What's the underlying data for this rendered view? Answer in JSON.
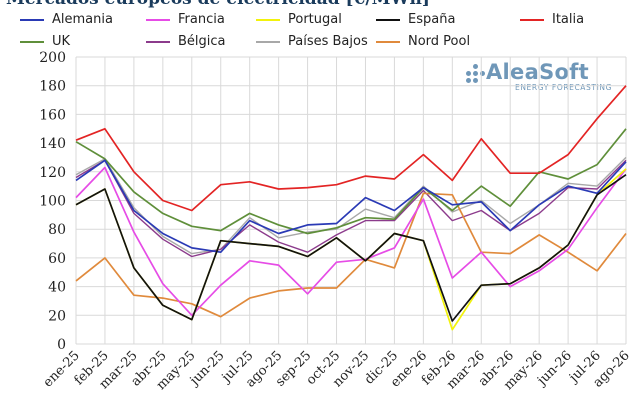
{
  "title": "Mercados europeos de electricidad [€/MWh]",
  "logo": {
    "name": "AleaSoft",
    "subtitle": "ENERGY FORECASTING"
  },
  "colors": {
    "Alemania": "#2a3ab5",
    "Francia": "#e64ce6",
    "Portugal": "#f2f20c",
    "España": "#111111",
    "Italia": "#e32424",
    "UK": "#5f8f3a",
    "Bélgica": "#8c3b8c",
    "Países Bajos": "#a8a8a8",
    "Nord Pool": "#e08a3c",
    "grid": "#d9d9d9",
    "axis_text": "#222222"
  },
  "chart_data": {
    "type": "line",
    "ylim": [
      0,
      200
    ],
    "yticks": [
      0,
      20,
      40,
      60,
      80,
      100,
      120,
      140,
      160,
      180,
      200
    ],
    "grid": true,
    "legend_position": "top",
    "categories": [
      "ene-25",
      "feb-25",
      "mar-25",
      "abr-25",
      "may-25",
      "jun-25",
      "jul-25",
      "ago-25",
      "sep-25",
      "oct-25",
      "nov-25",
      "dic-25",
      "ene-26",
      "feb-26",
      "mar-26",
      "abr-26",
      "may-26",
      "jun-26",
      "jul-26",
      "ago-26"
    ],
    "series": [
      {
        "name": "Alemania",
        "values": [
          114,
          128,
          93,
          77,
          67,
          64,
          86,
          77,
          83,
          84,
          102,
          93,
          109,
          97,
          99,
          79,
          97,
          110,
          105,
          127
        ]
      },
      {
        "name": "Francia",
        "values": [
          102,
          123,
          78,
          42,
          20,
          41,
          58,
          55,
          35,
          57,
          59,
          67,
          101,
          46,
          64,
          40,
          51,
          66,
          95,
          122
        ]
      },
      {
        "name": "Portugal",
        "values": [
          97,
          108,
          53,
          27,
          17,
          72,
          70,
          68,
          61,
          74,
          58,
          77,
          72,
          10,
          41,
          42,
          53,
          69,
          104,
          122
        ]
      },
      {
        "name": "España",
        "values": [
          97,
          108,
          53,
          27,
          17,
          72,
          70,
          68,
          61,
          74,
          58,
          77,
          72,
          16,
          41,
          42,
          53,
          69,
          104,
          118
        ]
      },
      {
        "name": "Italia",
        "values": [
          142,
          150,
          120,
          100,
          93,
          111,
          113,
          108,
          109,
          111,
          117,
          115,
          132,
          114,
          143,
          119,
          119,
          132,
          157,
          180
        ]
      },
      {
        "name": "UK",
        "values": [
          141,
          129,
          106,
          91,
          82,
          79,
          91,
          83,
          77,
          81,
          88,
          87,
          109,
          93,
          110,
          96,
          120,
          115,
          125,
          150
        ]
      },
      {
        "name": "Bélgica",
        "values": [
          116,
          128,
          91,
          73,
          61,
          66,
          83,
          71,
          64,
          76,
          86,
          86,
          107,
          86,
          93,
          79,
          91,
          109,
          108,
          128
        ]
      },
      {
        "name": "Países Bajos",
        "values": [
          118,
          129,
          95,
          75,
          63,
          66,
          88,
          74,
          78,
          80,
          94,
          88,
          110,
          92,
          100,
          84,
          97,
          112,
          110,
          130
        ]
      },
      {
        "name": "Nord Pool",
        "values": [
          44,
          60,
          34,
          32,
          28,
          19,
          32,
          37,
          39,
          39,
          59,
          53,
          105,
          104,
          64,
          63,
          76,
          64,
          51,
          77
        ]
      }
    ]
  }
}
